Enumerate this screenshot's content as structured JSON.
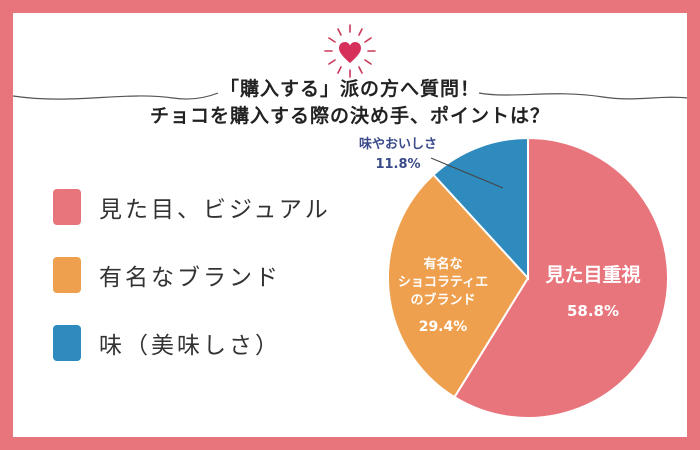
{
  "title": {
    "line1": "「購入する」派の方へ質問！",
    "line2": "チョコを購入する際の決め手、ポイントは？"
  },
  "icons": {
    "heart": "heart-icon",
    "sparkle": "sparkle-rays-icon"
  },
  "legend": [
    {
      "label": "見た目、ビジュアル",
      "color": "#e8747c"
    },
    {
      "label": "有名なブランド",
      "color": "#eea04e"
    },
    {
      "label": "味（美味しさ）",
      "color": "#2f8bbd"
    }
  ],
  "chart_data": {
    "type": "pie",
    "slices": [
      {
        "label": "見た目重視",
        "value": 58.8,
        "display": "58.8%",
        "color": "#e8747c"
      },
      {
        "label": "有名なショコラティエのブランド",
        "label_lines": [
          "有名な",
          "ショコラティエ",
          "のブランド"
        ],
        "value": 29.4,
        "display": "29.4%",
        "color": "#eea04e"
      },
      {
        "label": "味やおいしさ",
        "value": 11.8,
        "display": "11.8%",
        "color": "#2f8bbd"
      }
    ]
  }
}
